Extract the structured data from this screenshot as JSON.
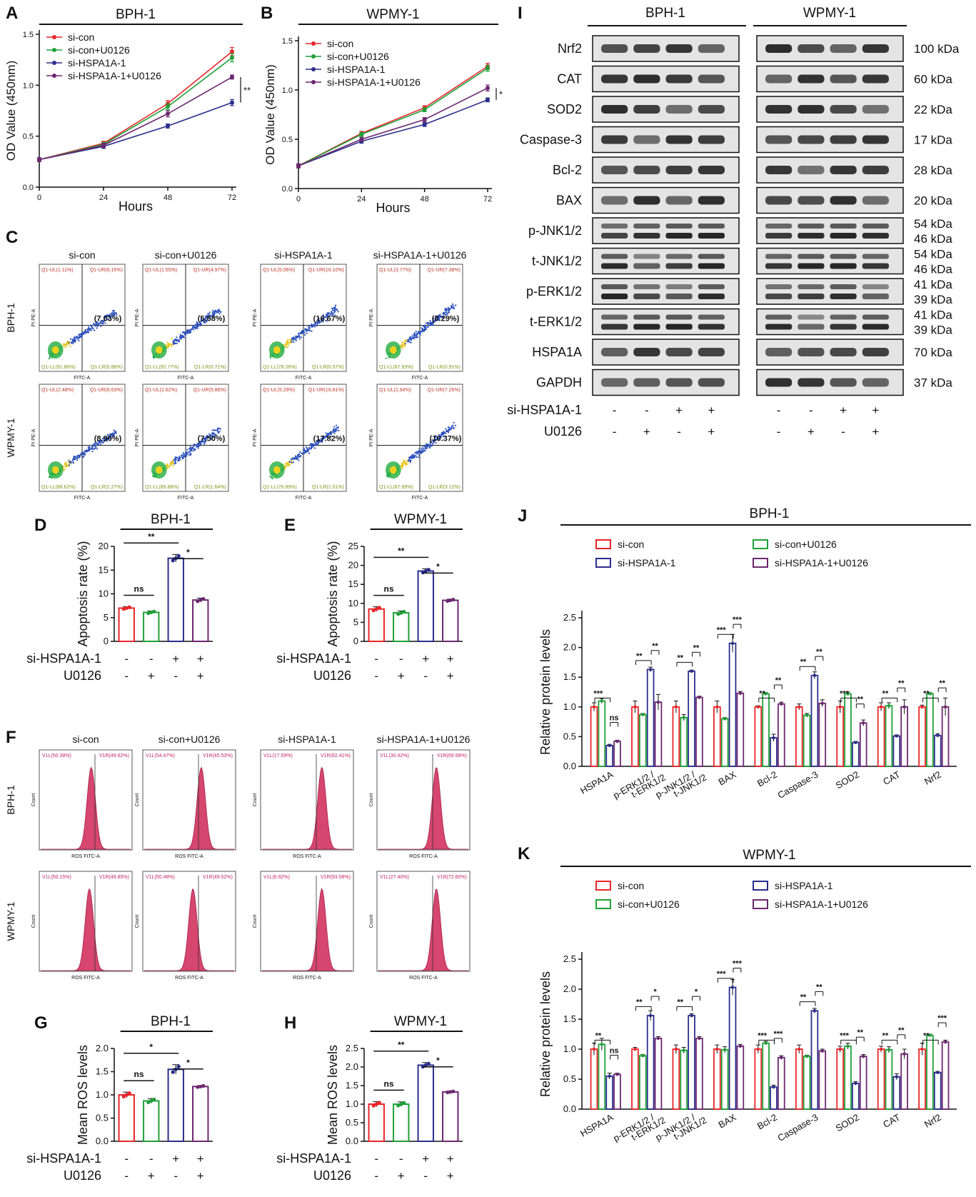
{
  "colors": {
    "si_con": "#e8262a",
    "si_con_U0126": "#1fa038",
    "si_HSPA1A": "#2b2e8c",
    "si_HSPA1A_U0126": "#6d2770",
    "flow": "#d6466e"
  },
  "groups": [
    "si-con",
    "si-con+U0126",
    "si-HSPA1A-1",
    "si-HSPA1A-1+U0126"
  ],
  "panels": {
    "A": {
      "letter": "A",
      "title": "BPH-1",
      "sig": "**"
    },
    "B": {
      "letter": "B",
      "title": "WPMY-1",
      "sig": "*"
    },
    "C": {
      "letter": "C",
      "rows": [
        "BPH-1",
        "WPMY-1"
      ],
      "quadrant_labels": [
        [
          [
            "Q1-UL(1.11%)",
            "Q1-UR(6.15%)",
            "Q1-LL(91.86%)",
            "Q1-LR(0.88%)",
            "(7.03%)"
          ],
          [
            "Q1-UL(1.55%)",
            "Q1-UR(4.97%)",
            "Q1-LL(92.77%)",
            "Q1-LR(0.71%)",
            "(5.68%)"
          ],
          [
            "Q1-UL(5.06%)",
            "Q1-UR(16.10%)",
            "Q1-LL(78.26%)",
            "Q1-LR(0.57%)",
            "(16.67%)"
          ],
          [
            "Q1-UL(3.77%)",
            "Q1-UR(7.38%)",
            "Q1-LL(87.93%)",
            "Q1-LR(0.91%)",
            "(8.29%)"
          ]
        ],
        [
          [
            "Q1-UL(2.48%)",
            "Q1-UR(6.63%)",
            "Q1-LL(88.62%)",
            "Q1-LR(2.27%)",
            "(8.90%)"
          ],
          [
            "Q1-UL(2.62%)",
            "Q1-UR(5.86%)",
            "Q1-LL(89.88%)",
            "Q1-LR(1.64%)",
            "(7.50%)"
          ],
          [
            "Q1-UL(5.29%)",
            "Q1-UR(16.81%)",
            "Q1-LL(76.89%)",
            "Q1-LR(1.01%)",
            "(17.82%)"
          ],
          [
            "Q1-UL(1.94%)",
            "Q1-UR(7.25%)",
            "Q1-LL(87.69%)",
            "Q1-LR(3.12%)",
            "(10.37%)"
          ]
        ]
      ],
      "xaxis": "FITC-A",
      "yaxis": "PI PE-A"
    },
    "D": {
      "letter": "D",
      "title": "BPH-1"
    },
    "E": {
      "letter": "E",
      "title": "WPMY-1"
    },
    "F": {
      "letter": "F",
      "rows": [
        "BPH-1",
        "WPMY-1"
      ],
      "gate_labels": [
        [
          [
            "V1L(50.38%)",
            "V1R(49.62%)"
          ],
          [
            "V1L(54.47%)",
            "V1R(45.53%)"
          ],
          [
            "V1L(17.59%)",
            "V1R(82.41%)"
          ],
          [
            "V1L(30.42%)",
            "V1R(69.58%)"
          ]
        ],
        [
          [
            "V1L(50.15%)",
            "V1R(49.85%)"
          ],
          [
            "V1L(50.48%)",
            "V1R(49.52%)"
          ],
          [
            "V1L(6.92%)",
            "V1R(93.08%)"
          ],
          [
            "V1L(27.40%)",
            "V1R(72.60%)"
          ]
        ]
      ],
      "xaxis": "ROS FITC-A",
      "yaxis": "Count"
    },
    "G": {
      "letter": "G",
      "title": "BPH-1"
    },
    "H": {
      "letter": "H",
      "title": "WPMY-1"
    },
    "I": {
      "letter": "I",
      "cells": [
        "BPH-1",
        "WPMY-1"
      ],
      "proteins": [
        "Nrf2",
        "CAT",
        "SOD2",
        "Caspase-3",
        "Bcl-2",
        "BAX",
        "p-JNK1/2",
        "t-JNK1/2",
        "p-ERK1/2",
        "t-ERK1/2",
        "HSPA1A",
        "GAPDH"
      ],
      "sizes": [
        "100 kDa",
        "60 kDa",
        "22 kDa",
        "17 kDa",
        "28 kDa",
        "20 kDa",
        "54 kDa|46 kDa",
        "54 kDa|46 kDa",
        "41 kDa|39 kDa",
        "41 kDa|39 kDa",
        "70 kDa",
        "37 kDa"
      ],
      "treat_rows": [
        {
          "label": "si-HSPA1A-1",
          "signs": [
            "-",
            "-",
            "+",
            "+"
          ]
        },
        {
          "label": "U0126",
          "signs": [
            "-",
            "+",
            "-",
            "+"
          ]
        }
      ]
    },
    "J": {
      "letter": "J",
      "title": "BPH-1"
    },
    "K": {
      "letter": "K",
      "title": "WPMY-1"
    }
  },
  "treatment_table": {
    "row1": "si-HSPA1A-1",
    "row2": "U0126",
    "signs1": [
      "-",
      "-",
      "+",
      "+"
    ],
    "signs2": [
      "-",
      "+",
      "-",
      "+"
    ]
  },
  "chart_data": [
    {
      "id": "A",
      "type": "line",
      "title": "BPH-1",
      "xlabel": "Hours",
      "ylabel": "OD Value (450nm)",
      "x": [
        0,
        24,
        48,
        72
      ],
      "xlim": [
        0,
        72
      ],
      "ylim": [
        0,
        1.5
      ],
      "yticks": [
        0.0,
        0.5,
        1.0,
        1.5
      ],
      "series": [
        {
          "name": "si-con",
          "values": [
            0.27,
            0.43,
            0.82,
            1.33
          ],
          "err": [
            0.02,
            0.02,
            0.03,
            0.04
          ]
        },
        {
          "name": "si-con+U0126",
          "values": [
            0.27,
            0.42,
            0.79,
            1.27
          ],
          "err": [
            0.02,
            0.02,
            0.03,
            0.04
          ]
        },
        {
          "name": "si-HSPA1A-1",
          "values": [
            0.27,
            0.4,
            0.6,
            0.83
          ],
          "err": [
            0.02,
            0.02,
            0.02,
            0.03
          ]
        },
        {
          "name": "si-HSPA1A-1+U0126",
          "values": [
            0.27,
            0.41,
            0.72,
            1.08
          ],
          "err": [
            0.02,
            0.02,
            0.03,
            0.02
          ]
        }
      ],
      "annotation": "**"
    },
    {
      "id": "B",
      "type": "line",
      "title": "WPMY-1",
      "xlabel": "Hours",
      "ylabel": "OD Value (450nm)",
      "x": [
        0,
        24,
        48,
        72
      ],
      "xlim": [
        0,
        72
      ],
      "ylim": [
        0,
        1.5
      ],
      "yticks": [
        0.0,
        0.5,
        1.0,
        1.5
      ],
      "series": [
        {
          "name": "si-con",
          "values": [
            0.23,
            0.56,
            0.82,
            1.24
          ],
          "err": [
            0.02,
            0.02,
            0.02,
            0.03
          ]
        },
        {
          "name": "si-con+U0126",
          "values": [
            0.23,
            0.55,
            0.8,
            1.22
          ],
          "err": [
            0.02,
            0.02,
            0.02,
            0.03
          ]
        },
        {
          "name": "si-HSPA1A-1",
          "values": [
            0.23,
            0.48,
            0.65,
            0.9
          ],
          "err": [
            0.02,
            0.02,
            0.02,
            0.02
          ]
        },
        {
          "name": "si-HSPA1A-1+U0126",
          "values": [
            0.23,
            0.5,
            0.7,
            1.02
          ],
          "err": [
            0.02,
            0.02,
            0.02,
            0.03
          ]
        }
      ],
      "annotation": "*"
    },
    {
      "id": "D",
      "type": "bar",
      "title": "BPH-1",
      "ylabel": "Apoptosis rate (%)",
      "ylim": [
        0,
        20
      ],
      "yticks": [
        0,
        5,
        10,
        15,
        20
      ],
      "categories": [
        "si-con",
        "si-con+U0126",
        "si-HSPA1A-1",
        "si-HSPA1A-1+U0126"
      ],
      "values": [
        7.0,
        6.1,
        17.5,
        8.7
      ],
      "err": [
        0.3,
        0.3,
        0.8,
        0.4
      ],
      "comparisons": [
        {
          "a": 0,
          "b": 1,
          "label": "ns"
        },
        {
          "a": 0,
          "b": 2,
          "label": "**"
        },
        {
          "a": 2,
          "b": 3,
          "label": "*"
        }
      ]
    },
    {
      "id": "E",
      "type": "bar",
      "title": "WPMY-1",
      "ylabel": "Apoptosis rate (%)",
      "ylim": [
        0,
        25
      ],
      "yticks": [
        0,
        5,
        10,
        15,
        20,
        25
      ],
      "categories": [
        "si-con",
        "si-con+U0126",
        "si-HSPA1A-1",
        "si-HSPA1A-1+U0126"
      ],
      "values": [
        8.5,
        7.5,
        18.5,
        10.8
      ],
      "err": [
        0.6,
        0.5,
        0.6,
        0.3
      ],
      "comparisons": [
        {
          "a": 0,
          "b": 1,
          "label": "ns"
        },
        {
          "a": 0,
          "b": 2,
          "label": "**"
        },
        {
          "a": 2,
          "b": 3,
          "label": "*"
        }
      ]
    },
    {
      "id": "G",
      "type": "bar",
      "title": "BPH-1",
      "ylabel": "Mean ROS levels",
      "ylim": [
        0,
        2.0
      ],
      "yticks": [
        0.0,
        0.5,
        1.0,
        1.5,
        2.0
      ],
      "categories": [
        "si-con",
        "si-con+U0126",
        "si-HSPA1A-1",
        "si-HSPA1A-1+U0126"
      ],
      "values": [
        1.0,
        0.87,
        1.55,
        1.18
      ],
      "err": [
        0.06,
        0.05,
        0.1,
        0.02
      ],
      "comparisons": [
        {
          "a": 0,
          "b": 1,
          "label": "ns"
        },
        {
          "a": 0,
          "b": 2,
          "label": "*"
        },
        {
          "a": 2,
          "b": 3,
          "label": "*"
        }
      ]
    },
    {
      "id": "H",
      "type": "bar",
      "title": "WPMY-1",
      "ylabel": "Mean ROS levels",
      "ylim": [
        0,
        2.5
      ],
      "yticks": [
        0.0,
        0.5,
        1.0,
        1.5,
        2.0,
        2.5
      ],
      "categories": [
        "si-con",
        "si-con+U0126",
        "si-HSPA1A-1",
        "si-HSPA1A-1+U0126"
      ],
      "values": [
        1.0,
        1.0,
        2.05,
        1.33
      ],
      "err": [
        0.07,
        0.06,
        0.07,
        0.02
      ],
      "comparisons": [
        {
          "a": 0,
          "b": 1,
          "label": "ns"
        },
        {
          "a": 0,
          "b": 2,
          "label": "**"
        },
        {
          "a": 2,
          "b": 3,
          "label": "*"
        }
      ]
    },
    {
      "id": "J",
      "type": "bar",
      "title": "BPH-1",
      "ylabel": "Relative protein levels",
      "ylim": [
        0,
        2.5
      ],
      "yticks": [
        0.0,
        0.5,
        1.0,
        1.5,
        2.0,
        2.5
      ],
      "categories": [
        "HSPA1A",
        "p-ERK1/2 / t-ERK1/2",
        "p-JNK1/2 / t-JNK1/2",
        "BAX",
        "Bcl-2",
        "Caspase-3",
        "SOD2",
        "CAT",
        "Nrf2"
      ],
      "legend": [
        "si-con",
        "si-con+U0126",
        "si-HSPA1A-1",
        "si-HSPA1A-1+U0126"
      ],
      "legend_order": [
        0,
        1,
        2,
        3
      ],
      "series": [
        {
          "name": "si-con",
          "values": [
            1.0,
            1.0,
            1.0,
            1.0,
            1.0,
            1.0,
            1.0,
            1.0,
            1.0
          ],
          "err": [
            0.07,
            0.1,
            0.1,
            0.1,
            0.02,
            0.05,
            0.1,
            0.07,
            0.03
          ]
        },
        {
          "name": "si-con+U0126",
          "values": [
            1.1,
            0.87,
            0.82,
            0.8,
            1.22,
            0.86,
            1.22,
            1.02,
            1.22
          ],
          "err": [
            0.04,
            0.02,
            0.05,
            0.02,
            0.02,
            0.03,
            0.03,
            0.05,
            0.02
          ]
        },
        {
          "name": "si-HSPA1A-1",
          "values": [
            0.35,
            1.63,
            1.6,
            2.07,
            0.48,
            1.53,
            0.4,
            0.51,
            0.52
          ],
          "err": [
            0.02,
            0.04,
            0.02,
            0.15,
            0.06,
            0.06,
            0.02,
            0.02,
            0.03
          ]
        },
        {
          "name": "si-HSPA1A-1+U0126",
          "values": [
            0.42,
            1.08,
            1.16,
            1.23,
            1.05,
            1.06,
            0.73,
            1.0,
            1.0
          ],
          "err": [
            0.02,
            0.13,
            0.02,
            0.03,
            0.03,
            0.06,
            0.05,
            0.12,
            0.15
          ]
        }
      ],
      "sig_low": [
        "***",
        "**",
        "**",
        "***",
        "**",
        "**",
        "***",
        "**",
        "**"
      ],
      "sig_high": [
        "ns",
        "**",
        "**",
        "***",
        "**",
        "**",
        "**",
        "**",
        "**"
      ]
    },
    {
      "id": "K",
      "type": "bar",
      "title": "WPMY-1",
      "ylabel": "Relative protein levels",
      "ylim": [
        0,
        2.5
      ],
      "yticks": [
        0.0,
        0.5,
        1.0,
        1.5,
        2.0,
        2.5
      ],
      "categories": [
        "HSPA1A",
        "p-ERK1/2 / t-ERK1/2",
        "p-JNK1/2 / t-JNK1/2",
        "BAX",
        "Bcl-2",
        "Caspase-3",
        "SOD2",
        "CAT",
        "Nrf2"
      ],
      "legend": [
        "si-con",
        "si-con+U0126",
        "si-HSPA1A-1",
        "si-HSPA1A-1+U0126"
      ],
      "legend_order": [
        0,
        2,
        1,
        3
      ],
      "series": [
        {
          "name": "si-con",
          "values": [
            1.0,
            1.0,
            1.0,
            1.0,
            1.0,
            1.0,
            1.0,
            1.0,
            1.0
          ],
          "err": [
            0.1,
            0.03,
            0.07,
            0.07,
            0.07,
            0.07,
            0.05,
            0.05,
            0.1
          ]
        },
        {
          "name": "si-con+U0126",
          "values": [
            1.08,
            0.89,
            0.98,
            0.99,
            1.1,
            0.88,
            1.05,
            0.99,
            1.23
          ],
          "err": [
            0.1,
            0.02,
            0.05,
            0.05,
            0.03,
            0.02,
            0.05,
            0.05,
            0.02
          ]
        },
        {
          "name": "si-HSPA1A-1",
          "values": [
            0.55,
            1.56,
            1.56,
            2.03,
            0.37,
            1.64,
            0.43,
            0.54,
            0.61
          ],
          "err": [
            0.05,
            0.08,
            0.03,
            0.13,
            0.03,
            0.04,
            0.03,
            0.05,
            0.02
          ]
        },
        {
          "name": "si-HSPA1A-1+U0126",
          "values": [
            0.58,
            1.18,
            1.18,
            1.05,
            0.86,
            0.97,
            0.88,
            0.92,
            1.12
          ],
          "err": [
            0.02,
            0.03,
            0.03,
            0.03,
            0.03,
            0.03,
            0.03,
            0.08,
            0.03
          ]
        }
      ],
      "sig_low": [
        "**",
        "**",
        "**",
        "***",
        "***",
        "**",
        "***",
        "**",
        "**"
      ],
      "sig_high": [
        "ns",
        "*",
        "*",
        "***",
        "***",
        "**",
        "**",
        "**",
        "***"
      ]
    }
  ]
}
